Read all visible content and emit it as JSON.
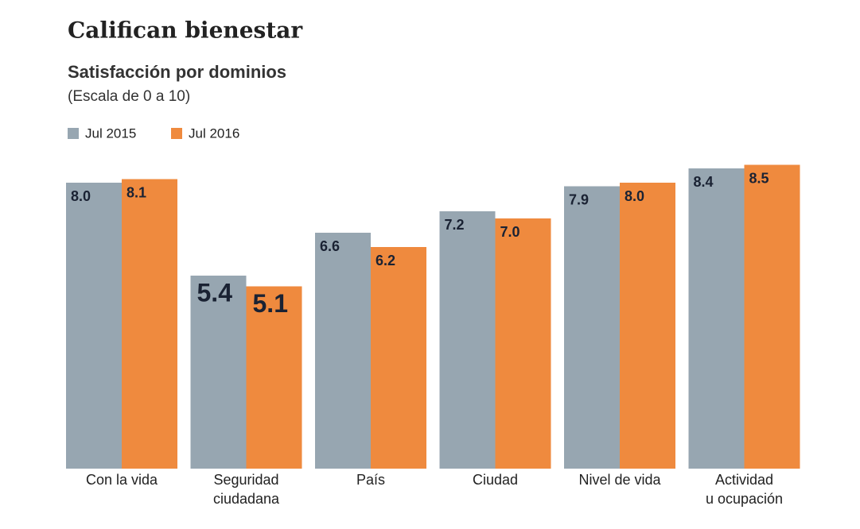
{
  "chart_data": {
    "type": "bar",
    "title": "Califican bienestar",
    "subtitle": "Satisfacción por dominios",
    "note": "(Escala de 0 a 10)",
    "categories": [
      "Con la vida",
      "Seguridad\nciudadana",
      "País",
      "Ciudad",
      "Nivel de vida",
      "Actividad\nu ocupación"
    ],
    "series": [
      {
        "name": "Jul 2015",
        "color": "#97a6b1",
        "values": [
          8.0,
          5.4,
          6.6,
          7.2,
          7.9,
          8.4
        ],
        "value_labels": [
          "8.0",
          "5.4",
          "6.6",
          "7.2",
          "7.9",
          "8.4"
        ]
      },
      {
        "name": "Jul 2016",
        "color": "#ef8a3e",
        "values": [
          8.1,
          5.1,
          6.2,
          7.0,
          8.0,
          8.5
        ],
        "value_labels": [
          "8.1",
          "5.1",
          "6.2",
          "7.0",
          "8.0",
          "8.5"
        ]
      }
    ],
    "ylim": [
      0,
      10
    ]
  }
}
